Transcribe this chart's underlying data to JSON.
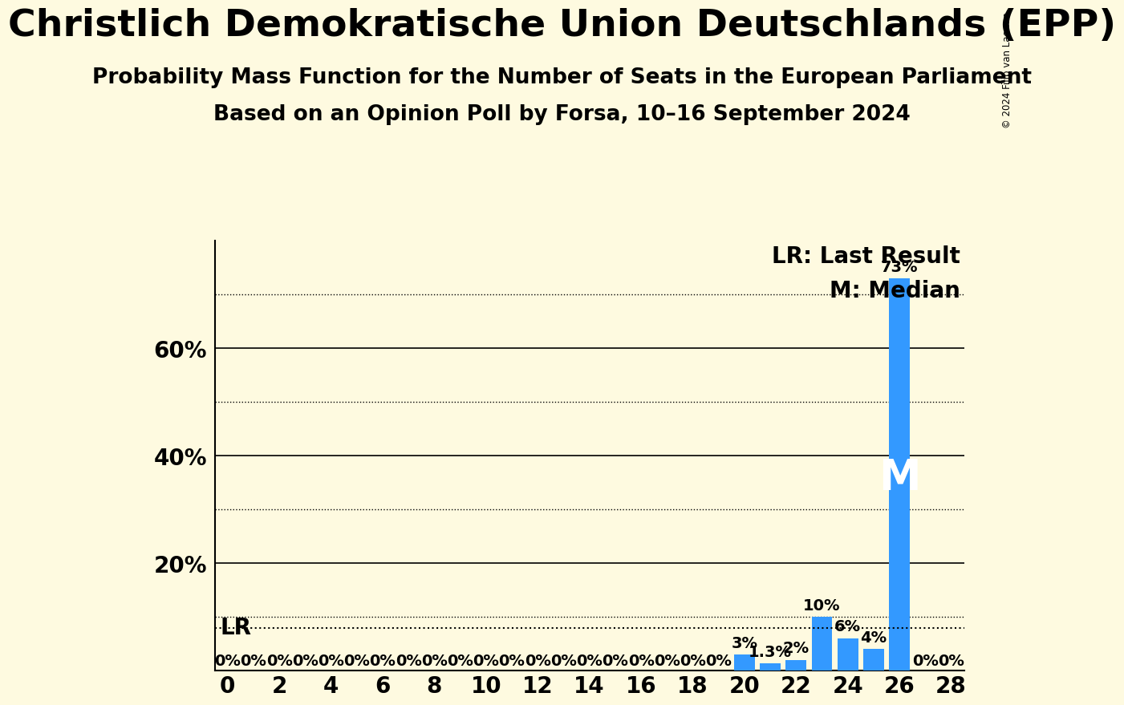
{
  "title": "Christlich Demokratische Union Deutschlands (EPP)",
  "subtitle1": "Probability Mass Function for the Number of Seats in the European Parliament",
  "subtitle2": "Based on an Opinion Poll by Forsa, 10–16 September 2024",
  "copyright": "© 2024 Filip van Laenen",
  "seats": [
    0,
    1,
    2,
    3,
    4,
    5,
    6,
    7,
    8,
    9,
    10,
    11,
    12,
    13,
    14,
    15,
    16,
    17,
    18,
    19,
    20,
    21,
    22,
    23,
    24,
    25,
    26,
    27,
    28
  ],
  "probabilities": [
    0,
    0,
    0,
    0,
    0,
    0,
    0,
    0,
    0,
    0,
    0,
    0,
    0,
    0,
    0,
    0,
    0,
    0,
    0,
    0,
    3,
    1.3,
    2,
    10,
    6,
    4,
    73,
    0,
    0
  ],
  "bar_color": "#3399FF",
  "background_color": "#FEFAE0",
  "median_seat": 26,
  "xlim": [
    -0.5,
    28.5
  ],
  "ylim": [
    0,
    80
  ],
  "dotted_yticks": [
    10,
    30,
    50,
    70
  ],
  "solid_yticks": [
    20,
    40,
    60
  ],
  "lr_y": 8,
  "title_fontsize": 34,
  "subtitle_fontsize": 19,
  "axis_tick_fontsize": 20,
  "bar_label_fontsize": 14,
  "legend_fontsize": 20,
  "median_label_fontsize": 38,
  "lr_label_fontsize": 20
}
